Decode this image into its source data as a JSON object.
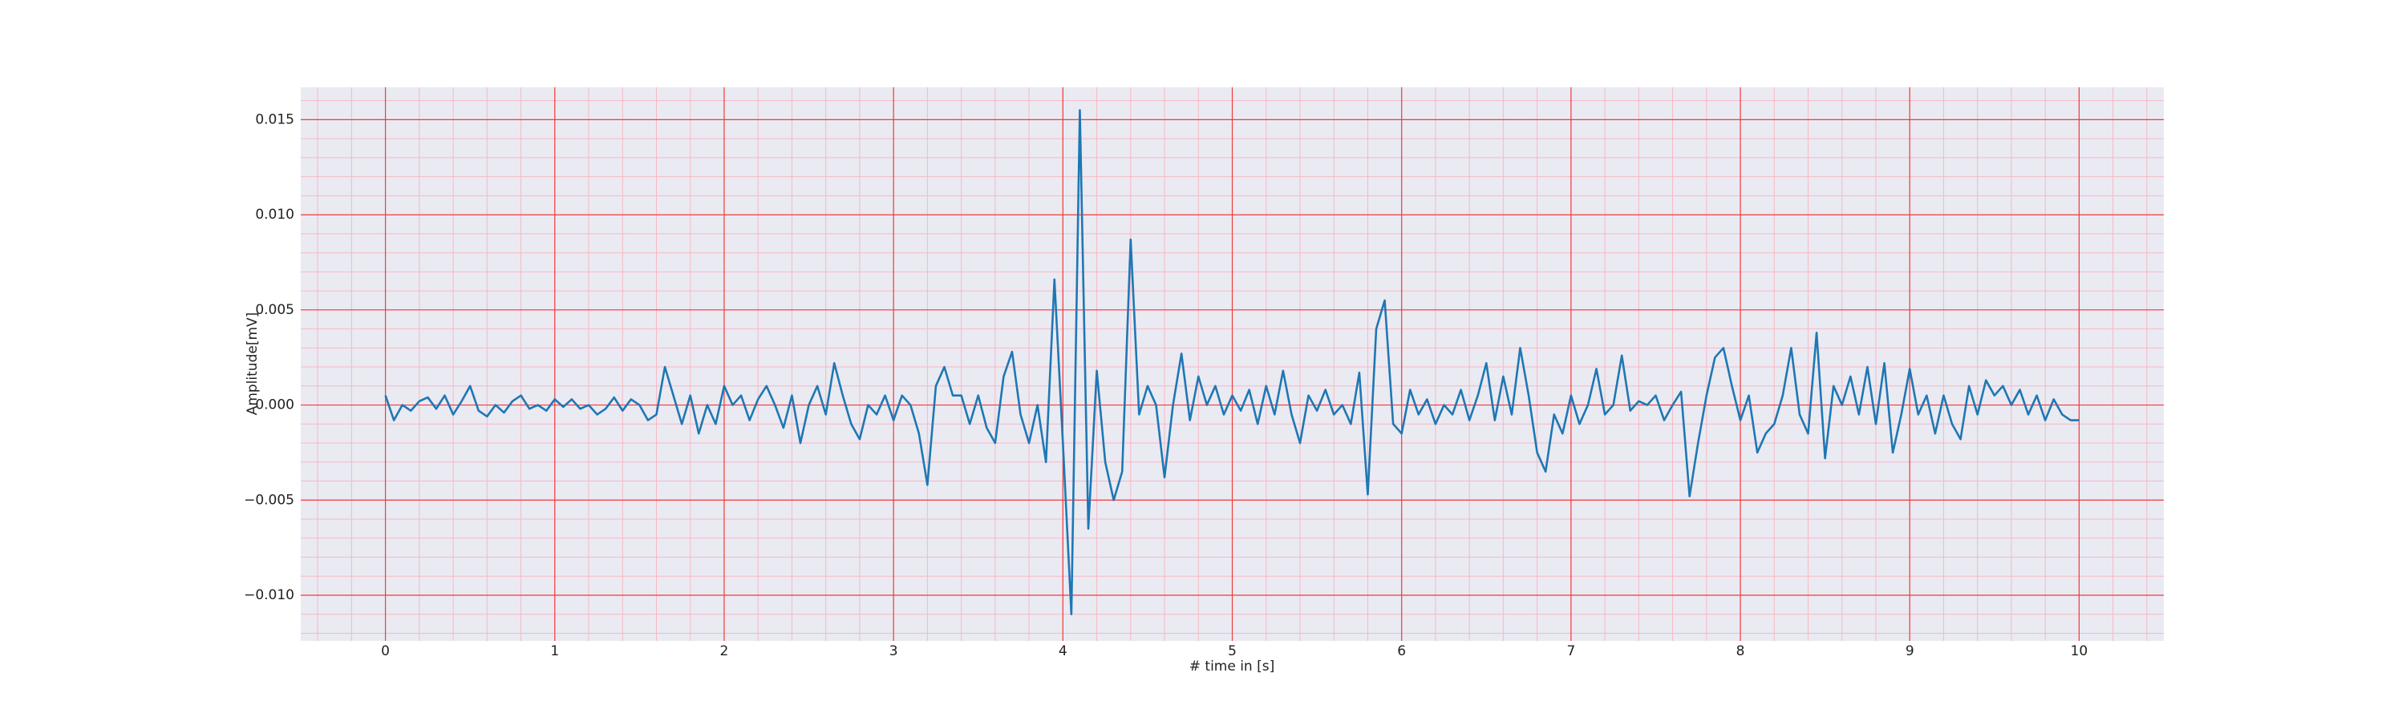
{
  "chart_data": {
    "type": "line",
    "x_label": "# time in [s]",
    "y_label": "Amplitude[mV]",
    "x": [
      0,
      0.05,
      0.1,
      0.15,
      0.2,
      0.25,
      0.3,
      0.35,
      0.4,
      0.45,
      0.5,
      0.55,
      0.6,
      0.65,
      0.7,
      0.75,
      0.8,
      0.85,
      0.9,
      0.95,
      1,
      1.05,
      1.1,
      1.15,
      1.2,
      1.25,
      1.3,
      1.35,
      1.4,
      1.45,
      1.5,
      1.55,
      1.6,
      1.65,
      1.7,
      1.75,
      1.8,
      1.85,
      1.9,
      1.95,
      2,
      2.05,
      2.1,
      2.15,
      2.2,
      2.25,
      2.3,
      2.35,
      2.4,
      2.45,
      2.5,
      2.55,
      2.6,
      2.65,
      2.7,
      2.75,
      2.8,
      2.85,
      2.9,
      2.95,
      3,
      3.05,
      3.1,
      3.15,
      3.2,
      3.25,
      3.3,
      3.35,
      3.4,
      3.45,
      3.5,
      3.55,
      3.6,
      3.65,
      3.7,
      3.75,
      3.8,
      3.85,
      3.9,
      3.95,
      4,
      4.05,
      4.1,
      4.15,
      4.2,
      4.25,
      4.3,
      4.35,
      4.4,
      4.45,
      4.5,
      4.55,
      4.6,
      4.65,
      4.7,
      4.75,
      4.8,
      4.85,
      4.9,
      4.95,
      5,
      5.05,
      5.1,
      5.15,
      5.2,
      5.25,
      5.3,
      5.35,
      5.4,
      5.45,
      5.5,
      5.55,
      5.6,
      5.65,
      5.7,
      5.75,
      5.8,
      5.85,
      5.9,
      5.95,
      6,
      6.05,
      6.1,
      6.15,
      6.2,
      6.25,
      6.3,
      6.35,
      6.4,
      6.45,
      6.5,
      6.55,
      6.6,
      6.65,
      6.7,
      6.75,
      6.8,
      6.85,
      6.9,
      6.95,
      7,
      7.05,
      7.1,
      7.15,
      7.2,
      7.25,
      7.3,
      7.35,
      7.4,
      7.45,
      7.5,
      7.55,
      7.6,
      7.65,
      7.7,
      7.75,
      7.8,
      7.85,
      7.9,
      7.95,
      8,
      8.05,
      8.1,
      8.15,
      8.2,
      8.25,
      8.3,
      8.35,
      8.4,
      8.45,
      8.5,
      8.55,
      8.6,
      8.65,
      8.7,
      8.75,
      8.8,
      8.85,
      8.9,
      8.95,
      9,
      9.05,
      9.1,
      9.15,
      9.2,
      9.25,
      9.3,
      9.35,
      9.4,
      9.45,
      9.5,
      9.55,
      9.6,
      9.65,
      9.7,
      9.75,
      9.8,
      9.85,
      9.9,
      9.95,
      10
    ],
    "series": [
      {
        "color": "#1f77b4",
        "values": [
          0.0005,
          -0.0008,
          0,
          -0.0003,
          0.0002,
          0.0004,
          -0.0002,
          0.0005,
          -0.0005,
          0.0002,
          0.001,
          -0.0003,
          -0.0006,
          0,
          -0.0004,
          0.0002,
          0.0005,
          -0.0002,
          0,
          -0.0003,
          0.0003,
          -0.0001,
          0.0003,
          -0.0002,
          0,
          -0.0005,
          -0.0002,
          0.0004,
          -0.0003,
          0.0003,
          0,
          -0.0008,
          -0.0005,
          0.002,
          0.0005,
          -0.001,
          0.0005,
          -0.0015,
          0,
          -0.001,
          0.001,
          0,
          0.0005,
          -0.0008,
          0.0003,
          0.001,
          0,
          -0.0012,
          0.0005,
          -0.002,
          0,
          0.001,
          -0.0005,
          0.0022,
          0.0005,
          -0.001,
          -0.0018,
          0,
          -0.0005,
          0.0005,
          -0.0008,
          0.0005,
          0,
          -0.0015,
          -0.0042,
          0.001,
          0.002,
          0.0005,
          0.0005,
          -0.001,
          0.0005,
          -0.0012,
          -0.002,
          0.0015,
          0.0028,
          -0.0005,
          -0.002,
          0,
          -0.003,
          0.0066,
          -0.002,
          -0.011,
          0.0155,
          -0.0065,
          0.0018,
          -0.003,
          -0.005,
          -0.0035,
          0.0087,
          -0.0005,
          0.001,
          0,
          -0.0038,
          0,
          0.0027,
          -0.0008,
          0.0015,
          0,
          0.001,
          -0.0005,
          0.0005,
          -0.0003,
          0.0008,
          -0.001,
          0.001,
          -0.0005,
          0.0018,
          -0.0005,
          -0.002,
          0.0005,
          -0.0003,
          0.0008,
          -0.0005,
          0,
          -0.001,
          0.0017,
          -0.0047,
          0.004,
          0.0055,
          -0.001,
          -0.0015,
          0.0008,
          -0.0005,
          0.0003,
          -0.001,
          0,
          -0.0005,
          0.0008,
          -0.0008,
          0.0005,
          0.0022,
          -0.0008,
          0.0015,
          -0.0005,
          0.003,
          0.0005,
          -0.0025,
          -0.0035,
          -0.0005,
          -0.0015,
          0.0005,
          -0.001,
          0,
          0.0019,
          -0.0005,
          0,
          0.0026,
          -0.0003,
          0.0002,
          0,
          0.0005,
          -0.0008,
          0,
          0.0007,
          -0.0048,
          -0.002,
          0.0005,
          0.0025,
          0.003,
          0.001,
          -0.0008,
          0.0005,
          -0.0025,
          -0.0015,
          -0.001,
          0.0005,
          0.003,
          -0.0005,
          -0.0015,
          0.0038,
          -0.0028,
          0.001,
          0,
          0.0015,
          -0.0005,
          0.002,
          -0.001,
          0.0022,
          -0.0025,
          -0.0005,
          0.0019,
          -0.0005,
          0.0005,
          -0.0015,
          0.0005,
          -0.001,
          -0.0018,
          0.001,
          -0.0005,
          0.0013,
          0.0005,
          0.001,
          0,
          0.0008,
          -0.0005,
          0.0005,
          -0.0008,
          0.0003,
          -0.0005,
          -0.0008,
          -0.0008
        ]
      }
    ],
    "xlim": [
      -0.5,
      10.5
    ],
    "xticks": [
      0,
      1,
      2,
      3,
      4,
      5,
      6,
      7,
      8,
      9,
      10
    ],
    "ylim": [
      -0.0124,
      0.0167
    ],
    "yticks": [
      {
        "value": -0.01,
        "label": "−0.010"
      },
      {
        "value": -0.005,
        "label": "−0.005"
      },
      {
        "value": 0,
        "label": "0.000"
      },
      {
        "value": 0.005,
        "label": "0.005"
      },
      {
        "value": 0.01,
        "label": "0.010"
      },
      {
        "value": 0.015,
        "label": "0.015"
      }
    ],
    "grid": true,
    "minor_grid": true
  }
}
